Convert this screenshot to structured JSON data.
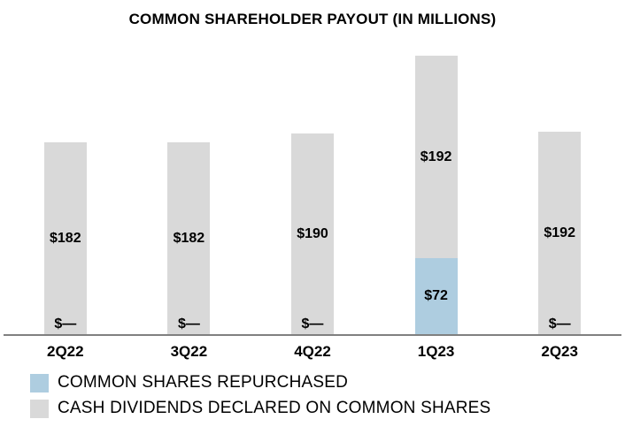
{
  "title": "COMMON SHAREHOLDER PAYOUT (IN MILLIONS)",
  "colors": {
    "repurchased": "#aecde0",
    "dividends": "#d9d9d9",
    "axis": "#808080"
  },
  "chart_data": {
    "type": "bar",
    "stacked": true,
    "title": "COMMON SHAREHOLDER PAYOUT (IN MILLIONS)",
    "categories": [
      "2Q22",
      "3Q22",
      "4Q22",
      "1Q23",
      "2Q23"
    ],
    "series": [
      {
        "name": "COMMON SHARES REPURCHASED",
        "color": "#aecde0",
        "values": [
          0,
          0,
          0,
          72,
          0
        ],
        "labels": [
          "$—",
          "$—",
          "$—",
          "$72",
          "$—"
        ]
      },
      {
        "name": "CASH DIVIDENDS DECLARED ON COMMON SHARES",
        "color": "#d9d9d9",
        "values": [
          182,
          182,
          190,
          192,
          192
        ],
        "labels": [
          "$182",
          "$182",
          "$190",
          "$192",
          "$192"
        ]
      }
    ],
    "xlabel": "",
    "ylabel": "",
    "ylim": [
      0,
      285
    ],
    "grid": false,
    "legend_position": "bottom-left"
  },
  "legend": [
    {
      "label": "COMMON SHARES REPURCHASED",
      "color": "#aecde0"
    },
    {
      "label": "CASH DIVIDENDS DECLARED ON COMMON SHARES",
      "color": "#d9d9d9"
    }
  ]
}
